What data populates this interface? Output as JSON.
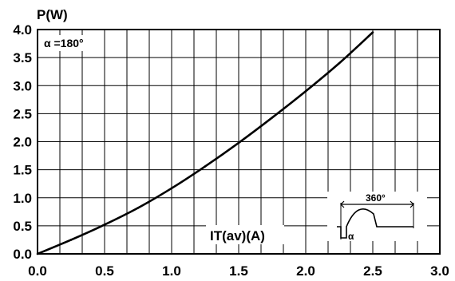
{
  "chart_data": {
    "type": "line",
    "ylabel": "P(W)",
    "xlabel": "IT(av)(A)",
    "xlim": [
      0,
      3.0
    ],
    "ylim": [
      0,
      4.0
    ],
    "x_ticks": [
      "0.0",
      "0.5",
      "1.0",
      "1.5",
      "2.0",
      "2.5",
      "3.0"
    ],
    "y_ticks": [
      "0.0",
      "0.5",
      "1.0",
      "1.5",
      "2.0",
      "2.5",
      "3.0",
      "3.5",
      "4.0"
    ],
    "grid": true,
    "annotation": "α =180°",
    "inset": {
      "period_label": "360°",
      "angle_label": "α"
    },
    "series": [
      {
        "x": [
          0,
          0.25,
          0.5,
          0.75,
          1.0,
          1.25,
          1.5,
          1.75,
          2.0,
          2.25,
          2.5
        ],
        "y": [
          0,
          0.25,
          0.52,
          0.82,
          1.17,
          1.56,
          1.98,
          2.43,
          2.9,
          3.4,
          3.95
        ]
      }
    ]
  }
}
